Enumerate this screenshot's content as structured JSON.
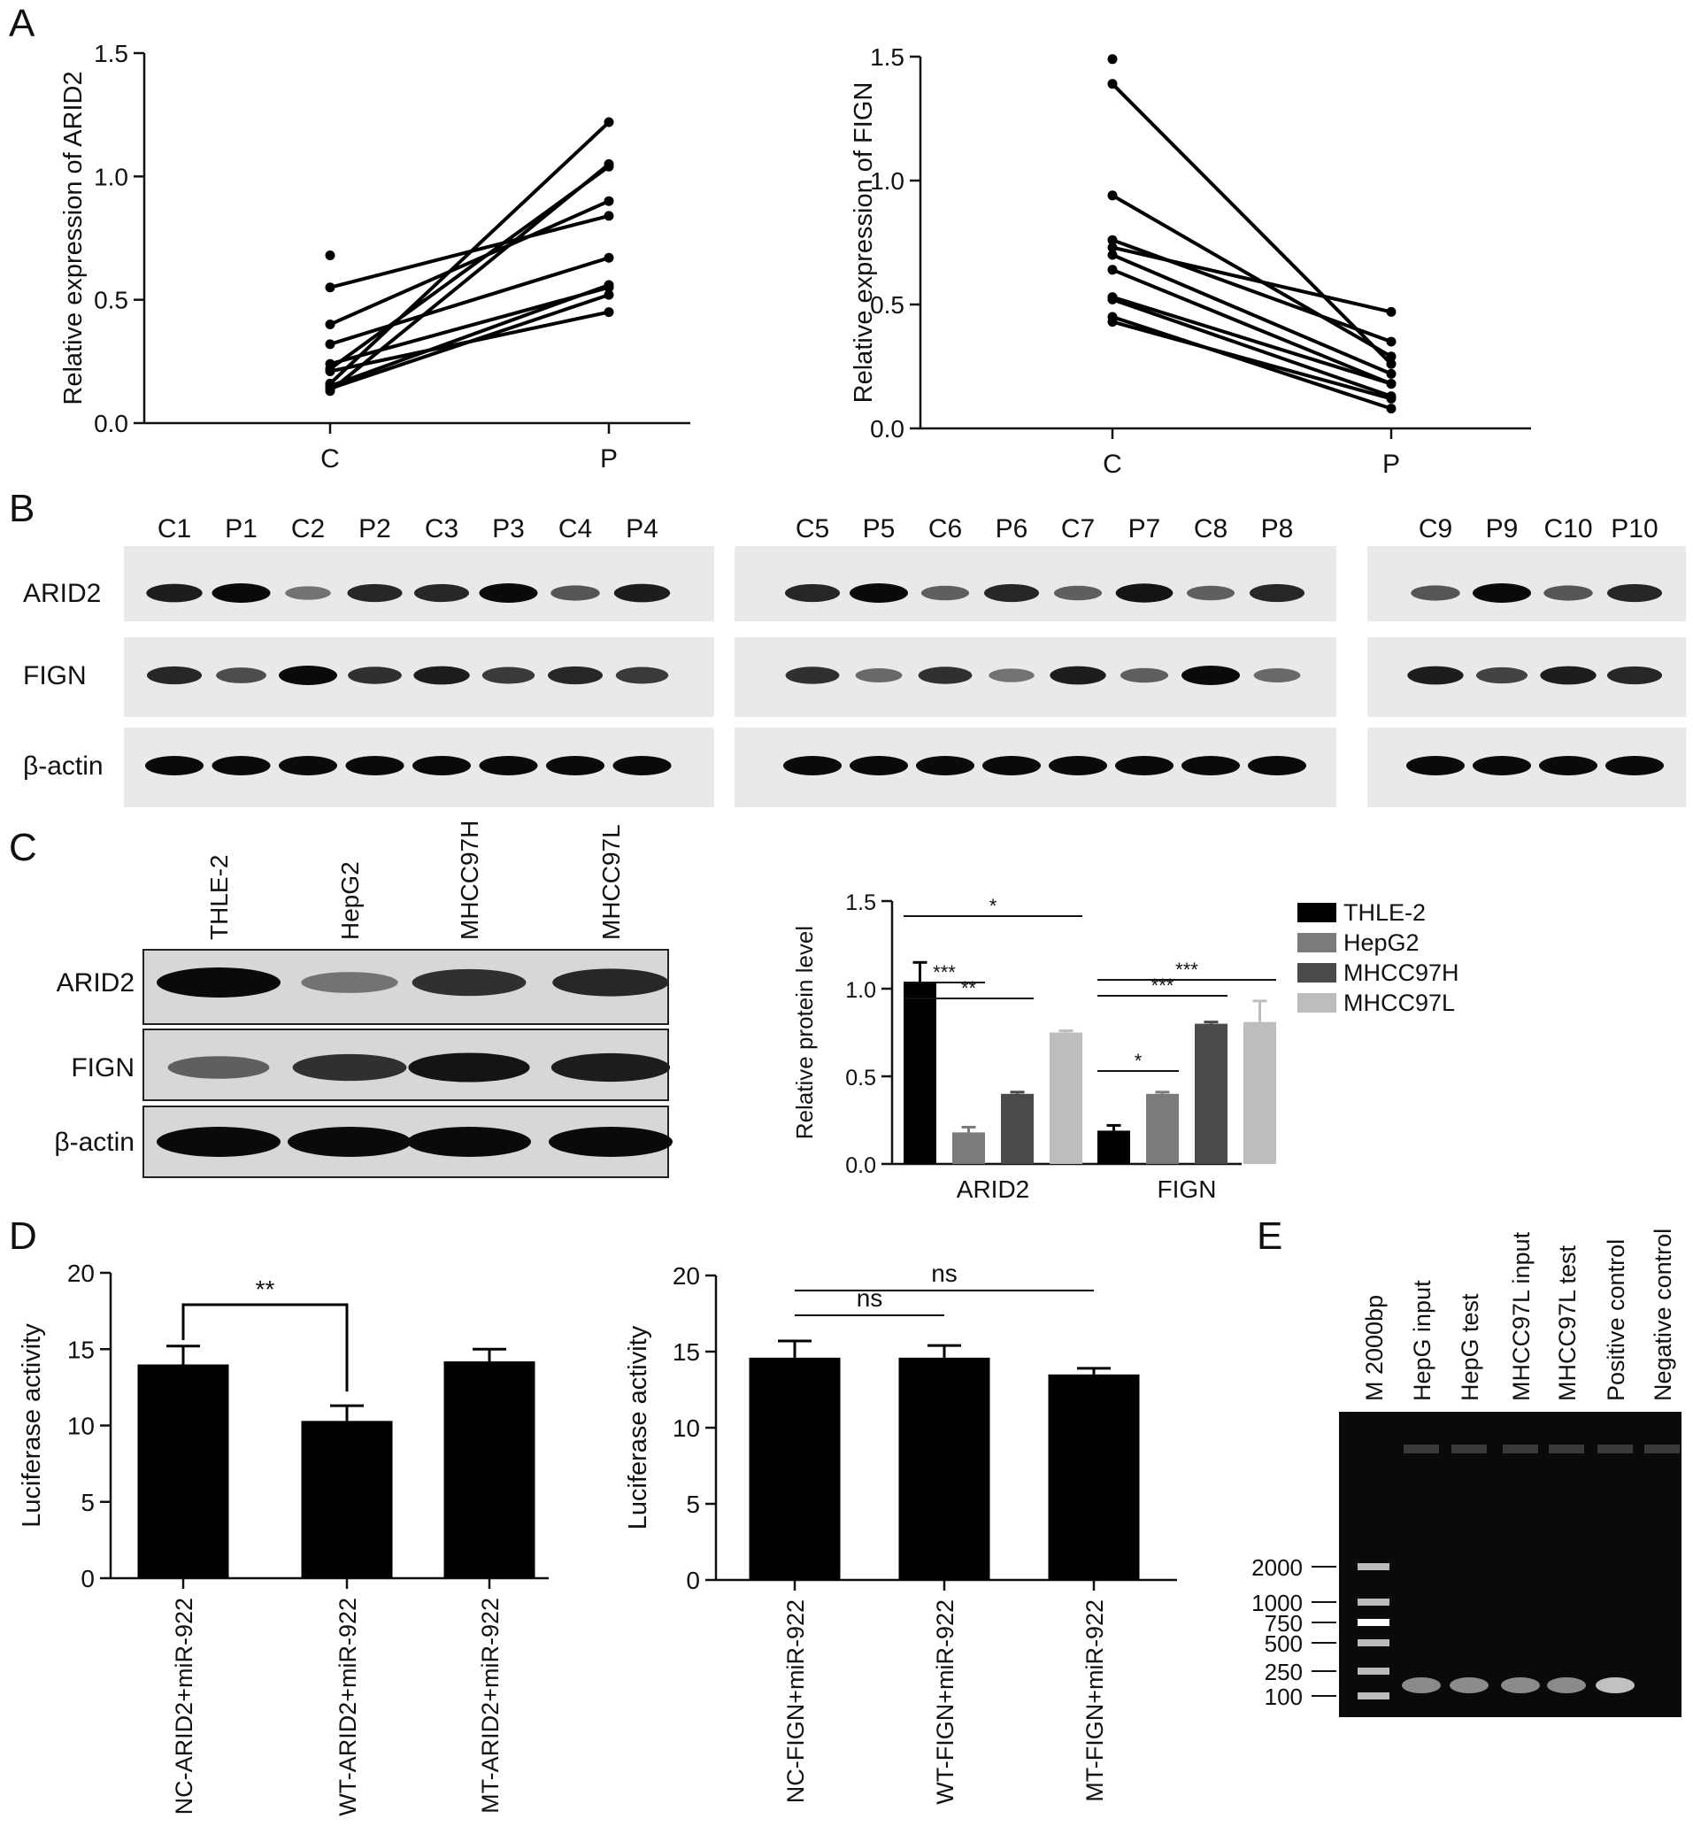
{
  "panels": {
    "A": "A",
    "B": "B",
    "C": "C",
    "D": "D",
    "E": "E"
  },
  "chart_data": [
    {
      "id": "A_left",
      "type": "line",
      "ylabel": "Relative expression of ARID2",
      "categories": [
        "C",
        "P"
      ],
      "ylim": [
        0,
        1.5
      ],
      "yticks": [
        "0.0",
        "0.5",
        "1.0",
        "1.5"
      ],
      "pairs": [
        [
          0.16,
          1.22
        ],
        [
          0.13,
          1.05
        ],
        [
          0.22,
          1.04
        ],
        [
          0.4,
          0.9
        ],
        [
          0.55,
          0.84
        ],
        [
          0.32,
          0.67
        ],
        [
          0.15,
          0.56
        ],
        [
          0.24,
          0.55
        ],
        [
          0.14,
          0.52
        ],
        [
          0.21,
          0.45
        ]
      ],
      "extra_points": [
        {
          "x": "C",
          "y": 0.68
        }
      ]
    },
    {
      "id": "A_right",
      "type": "line",
      "ylabel": "Relative expression of FIGN",
      "categories": [
        "C",
        "P"
      ],
      "ylim": [
        0,
        1.5
      ],
      "yticks": [
        "0.0",
        "0.5",
        "1.0",
        "1.5"
      ],
      "pairs": [
        [
          1.39,
          0.26
        ],
        [
          0.94,
          0.29
        ],
        [
          0.76,
          0.35
        ],
        [
          0.73,
          0.47
        ],
        [
          0.7,
          0.22
        ],
        [
          0.64,
          0.18
        ],
        [
          0.53,
          0.18
        ],
        [
          0.52,
          0.13
        ],
        [
          0.45,
          0.08
        ],
        [
          0.43,
          0.12
        ]
      ],
      "extra_points": [
        {
          "x": "C",
          "y": 1.49
        }
      ]
    },
    {
      "id": "C_right",
      "type": "bar",
      "ylabel": "Relative protein level",
      "categories": [
        "ARID2",
        "FIGN"
      ],
      "ylim": [
        0,
        1.5
      ],
      "yticks": [
        "0.0",
        "0.5",
        "1.0",
        "1.5"
      ],
      "series": [
        {
          "name": "THLE-2",
          "values": [
            1.04,
            0.19
          ],
          "errors": [
            0.11,
            0.03
          ],
          "color": "#000000"
        },
        {
          "name": "HepG2",
          "values": [
            0.18,
            0.4
          ],
          "errors": [
            0.03,
            0.01
          ],
          "color": "#7b7b7b"
        },
        {
          "name": "MHCC97H",
          "values": [
            0.4,
            0.8
          ],
          "errors": [
            0.01,
            0.01
          ],
          "color": "#4a4a4a"
        },
        {
          "name": "MHCC97L",
          "values": [
            0.75,
            0.81
          ],
          "errors": [
            0.01,
            0.12
          ],
          "color": "#bdbdbd"
        }
      ],
      "significance": [
        {
          "group": "ARID2",
          "from": "THLE-2",
          "to": "HepG2",
          "label": "***"
        },
        {
          "group": "ARID2",
          "from": "THLE-2",
          "to": "MHCC97H",
          "label": "**"
        },
        {
          "group": "ARID2",
          "from": "THLE-2",
          "to": "MHCC97L",
          "label": "*"
        },
        {
          "group": "FIGN",
          "from": "THLE-2",
          "to": "HepG2",
          "label": "*"
        },
        {
          "group": "FIGN",
          "from": "THLE-2",
          "to": "MHCC97H",
          "label": "***"
        },
        {
          "group": "FIGN",
          "from": "THLE-2",
          "to": "MHCC97L",
          "label": "***"
        }
      ]
    },
    {
      "id": "D_left",
      "type": "bar",
      "ylabel": "Luciferase activity",
      "categories": [
        "NC-ARID2+miR-922",
        "WT-ARID2+miR-922",
        "MT-ARID2+miR-922"
      ],
      "values": [
        14.0,
        10.3,
        14.2
      ],
      "errors": [
        1.2,
        1.0,
        0.8
      ],
      "ylim": [
        0,
        20
      ],
      "yticks": [
        "0",
        "5",
        "10",
        "15",
        "20"
      ],
      "significance": [
        {
          "from": 0,
          "to": 1,
          "label": "**"
        }
      ]
    },
    {
      "id": "D_right",
      "type": "bar",
      "ylabel": "Luciferase activity",
      "categories": [
        "NC-FIGN+miR-922",
        "WT-FIGN+miR-922",
        "MT-FIGN+miR-922"
      ],
      "values": [
        14.6,
        14.6,
        13.5
      ],
      "errors": [
        1.1,
        0.8,
        0.4
      ],
      "ylim": [
        0,
        20
      ],
      "yticks": [
        "0",
        "5",
        "10",
        "15",
        "20"
      ],
      "significance": [
        {
          "from": 0,
          "to": 1,
          "label": "ns"
        },
        {
          "from": 0,
          "to": 2,
          "label": "ns"
        }
      ]
    }
  ],
  "blots_b": {
    "groups": [
      {
        "lanes": [
          "C1",
          "P1",
          "C2",
          "P2",
          "C3",
          "P3",
          "C4",
          "P4"
        ],
        "intensity": {
          "ARID2": [
            0.9,
            1.0,
            0.45,
            0.85,
            0.85,
            1.0,
            0.6,
            0.9
          ],
          "FIGN": [
            0.85,
            0.65,
            1.0,
            0.8,
            0.9,
            0.75,
            0.85,
            0.75
          ],
          "β-actin": [
            1,
            1,
            1,
            1,
            1,
            1,
            1,
            1
          ]
        }
      },
      {
        "lanes": [
          "C5",
          "P5",
          "C6",
          "P6",
          "C7",
          "P7",
          "C8",
          "P8"
        ],
        "intensity": {
          "ARID2": [
            0.85,
            1.0,
            0.55,
            0.85,
            0.55,
            0.95,
            0.55,
            0.85
          ],
          "FIGN": [
            0.8,
            0.5,
            0.8,
            0.45,
            0.9,
            0.55,
            1.0,
            0.5
          ],
          "β-actin": [
            1,
            1,
            1,
            1,
            1,
            1,
            1,
            1
          ]
        }
      },
      {
        "lanes": [
          "C9",
          "P9",
          "C10",
          "P10"
        ],
        "intensity": {
          "ARID2": [
            0.6,
            1.0,
            0.6,
            0.85
          ],
          "FIGN": [
            0.9,
            0.7,
            0.9,
            0.85
          ],
          "β-actin": [
            1,
            1,
            1,
            1
          ]
        }
      }
    ],
    "rows": [
      "ARID2",
      "FIGN",
      "β-actin"
    ]
  },
  "blots_c": {
    "lanes": [
      "THLE-2",
      "HepG2",
      "MHCC97H",
      "MHCC97L"
    ],
    "rows": [
      "ARID2",
      "FIGN",
      "β-actin"
    ],
    "intensity": {
      "ARID2": [
        1.0,
        0.45,
        0.8,
        0.85
      ],
      "FIGN": [
        0.55,
        0.8,
        0.95,
        0.9
      ],
      "β-actin": [
        1,
        1,
        1,
        1
      ]
    }
  },
  "gel_e": {
    "lanes": [
      "M 2000bp",
      "HepG input",
      "HepG test",
      "MHCC97L input",
      "MHCC97L test",
      "Positive control",
      "Negative control"
    ],
    "markers": [
      "2000",
      "1000",
      "750",
      "500",
      "250",
      "100"
    ],
    "marker_bp": [
      2000,
      1000,
      750,
      500,
      250,
      100
    ],
    "band_bp": 100,
    "band_intensity": [
      0,
      0.55,
      0.55,
      0.55,
      0.55,
      0.85,
      0
    ]
  }
}
